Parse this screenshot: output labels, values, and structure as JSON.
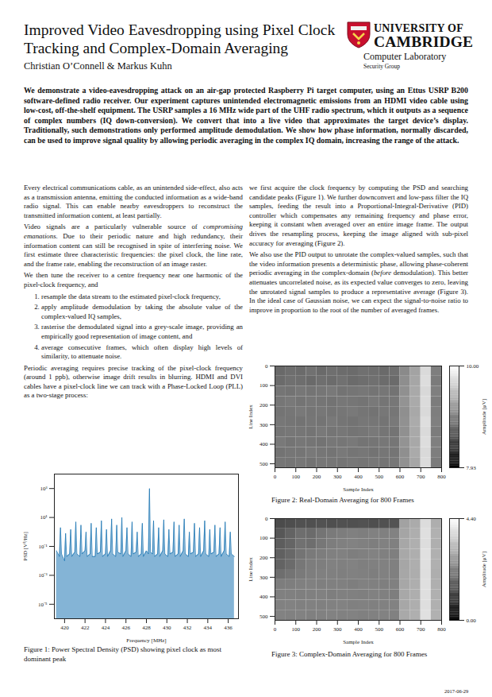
{
  "document": {
    "title_lines": [
      "Improved Video Eavesdropping using Pixel Clock",
      "Tracking and Complex-Domain Averaging"
    ],
    "authors": "Christian O’Connell & Markus Kuhn",
    "institution": {
      "name_lines": [
        "UNIVERSITY OF",
        "CAMBRIDGE"
      ],
      "department": "Computer Laboratory",
      "group": "Security Group"
    },
    "abstract": "We demonstrate a video-eavesdropping attack on an air-gap protected Raspberry Pi target computer, using an Ettus USRP B200 software-defined radio receiver. Our experiment captures unintended electromagnetic emissions from an HDMI video cable using low-cost, off-the-shelf equipment. The USRP samples a 16 MHz wide part of the UHF radio spectrum, which it outputs as a sequence of complex numbers (IQ down-conversion). We convert that into a live video that approximates the target device’s display. Traditionally, such demonstrations only performed amplitude demodulation. We show how phase information, normally discarded, can be used to improve signal quality by allowing periodic averaging in the complex IQ domain, increasing the range of the attack.",
    "left_column": [
      {
        "type": "p",
        "segments": [
          {
            "text": "Every electrical communications cable, as an unintended side-effect, also acts as a transmission antenna, emitting the conducted information as a wide-band radio signal. This can enable nearby eavesdroppers to reconstruct the transmitted information content, at least partially."
          }
        ]
      },
      {
        "type": "p",
        "segments": [
          {
            "text": "Video signals are a particularly vulnerable source of "
          },
          {
            "text": "compromising emanations",
            "italic": true
          },
          {
            "text": ". Due to their periodic nature and high redundancy, their information content can still be recognised in spite of interfering noise. We first estimate three characteristic frequencies: the pixel clock, the line rate, and the frame rate, enabling the reconstruction of an image raster."
          }
        ]
      },
      {
        "type": "p",
        "segments": [
          {
            "text": "We then tune the receiver to a centre frequency near one harmonic of the pixel-clock frequency, and"
          }
        ]
      },
      {
        "type": "ol",
        "items": [
          "resample the data stream to the estimated pixel-clock frequency,",
          "apply amplitude demodulation by taking the absolute value of the complex-valued IQ samples,",
          "rasterise the demodulated signal into a grey-scale image, providing an empirically good representation of image content, and",
          "average consecutive frames, which often display high levels of similarity, to attenuate noise."
        ]
      },
      {
        "type": "p",
        "segments": [
          {
            "text": "Periodic averaging requires precise tracking of the pixel-clock frequency (around 1 ppb), otherwise image drift results in blurring. HDMI and DVI cables have a pixel-clock line we can track with a Phase-Locked Loop (PLL) as a two-stage process:"
          }
        ]
      }
    ],
    "right_column": [
      {
        "type": "p",
        "segments": [
          {
            "text": "we first acquire the clock frequency by computing the PSD and searching candidate peaks (Figure 1). We further downconvert and low-pass filter the IQ samples, feeding the result into a Proportional-Integral-Derivative (PID) controller which compensates any remaining frequency and phase error, keeping it constant when averaged over an entire image frame. The output drives the resampling process, keeping the image aligned with sub-pixel accuracy for averaging (Figure 2)."
          }
        ]
      },
      {
        "type": "p",
        "segments": [
          {
            "text": "We also use the PID output to unrotate the complex-valued samples, such that the video information presents a deterministic phase, allowing phase-coherent periodic averaging in the complex-domain ("
          },
          {
            "text": "before",
            "italic": true
          },
          {
            "text": " demodulation). This better attenuates uncorrelated noise, as its expected value converges to zero, leaving the unrotated signal samples to produce a representative average (Figure 3). In the ideal case of Gaussian noise, we can expect the signal-to-noise ratio to improve in proportion to the root of the number of averaged frames."
          }
        ]
      }
    ],
    "date": "2017-06-29"
  },
  "chart_data": [
    {
      "type": "line",
      "title": "Figure 1: Power Spectral Density (PSD) showing pixel clock as most dominant peak",
      "xlabel": "Frequency [MHz]",
      "ylabel": "PSD [V²/Hz]",
      "log": "y",
      "grid": false,
      "color": "#1f77b4",
      "xlim": [
        419,
        437
      ],
      "xticks": [
        420,
        422,
        424,
        426,
        428,
        430,
        432,
        434,
        436
      ],
      "ylim": [
        1e-06,
        10000
      ],
      "yticks": [
        {
          "value": 1000,
          "label": "10³"
        },
        {
          "value": 10,
          "label": "10¹"
        },
        {
          "value": 0.1,
          "label": "10⁻¹"
        },
        {
          "value": 0.001,
          "label": "10⁻³"
        },
        {
          "value": 1e-05,
          "label": "10⁻⁵"
        }
      ],
      "x": [
        419.2,
        419.5,
        419.6,
        419.7,
        420.0,
        420.1,
        420.2,
        420.5,
        420.6,
        420.7,
        421.0,
        421.1,
        421.2,
        421.5,
        421.6,
        421.7,
        422.0,
        422.1,
        422.2,
        422.5,
        422.6,
        422.7,
        423.0,
        423.1,
        423.2,
        423.5,
        423.6,
        423.7,
        424.0,
        424.1,
        424.2,
        424.5,
        424.6,
        424.7,
        425.0,
        425.1,
        425.2,
        425.5,
        425.6,
        425.7,
        426.0,
        426.1,
        426.2,
        426.5,
        426.6,
        426.7,
        427.0,
        427.1,
        427.2,
        427.5,
        427.6,
        427.7,
        428.0,
        428.2,
        428.3,
        428.4,
        428.6,
        428.7,
        428.8,
        429.1,
        429.2,
        429.3,
        429.6,
        429.7,
        429.8,
        430.1,
        430.2,
        430.3,
        430.6,
        430.7,
        430.8,
        431.1,
        431.2,
        431.3,
        431.6,
        431.7,
        431.8,
        432.1,
        432.2,
        432.3,
        432.6,
        432.7,
        432.8,
        433.1,
        433.2,
        433.3,
        433.6,
        433.7,
        433.8,
        434.1,
        434.2,
        434.3,
        434.6,
        434.7,
        434.8,
        435.1,
        435.2,
        435.3,
        435.6,
        435.7,
        435.8,
        436.1,
        436.2,
        436.3,
        436.6
      ],
      "values": [
        0.05,
        0.02,
        2,
        0.03,
        0.01,
        0.8,
        0.02,
        0.03,
        1.5,
        0.02,
        0.04,
        5,
        0.03,
        0.02,
        3,
        0.03,
        0.05,
        1,
        0.02,
        0.03,
        4,
        0.02,
        0.02,
        2,
        0.03,
        0.04,
        6,
        0.02,
        0.03,
        1.5,
        0.02,
        0.05,
        8,
        0.03,
        0.02,
        3,
        0.04,
        0.03,
        10,
        0.02,
        0.05,
        2,
        0.03,
        0.02,
        5,
        0.03,
        0.04,
        1,
        0.02,
        0.03,
        4,
        0.02,
        0.05,
        0.03,
        1000,
        0.04,
        0.03,
        6,
        0.02,
        0.03,
        2,
        0.02,
        0.05,
        7,
        0.03,
        0.02,
        1.5,
        0.03,
        0.04,
        5,
        0.02,
        0.03,
        3,
        0.02,
        0.05,
        8,
        0.03,
        0.02,
        1,
        0.03,
        0.04,
        4,
        0.02,
        0.03,
        2,
        0.02,
        0.05,
        6,
        0.03,
        0.02,
        1.5,
        0.03,
        0.04,
        3,
        0.02,
        0.03,
        2,
        0.02,
        0.05,
        5,
        0.03,
        0.02,
        1,
        0.03,
        0.02
      ]
    },
    {
      "type": "heatmap",
      "title": "Figure 2: Real-Domain Averaging for 800 Frames",
      "xlabel": "Sample Index",
      "ylabel": "Line Index",
      "xlim": [
        0,
        800
      ],
      "xticks": [
        0,
        100,
        200,
        300,
        400,
        500,
        600,
        700,
        800
      ],
      "ylim": [
        520,
        0
      ],
      "yticks": [
        0,
        100,
        200,
        300,
        400,
        500
      ],
      "cells": {
        "x": [
          0,
          50,
          100,
          150,
          200,
          250,
          300,
          350,
          400,
          450,
          500,
          550,
          600,
          650,
          700,
          750,
          800
        ],
        "y": [
          0,
          52,
          104,
          156,
          208,
          260,
          312,
          364,
          416,
          468,
          520
        ],
        "values": [
          [
            8.78,
            8.82,
            8.8,
            8.85,
            8.79,
            8.83,
            8.81,
            8.8,
            8.84,
            8.82,
            8.79,
            8.83,
            9.05,
            9.25,
            9.7,
            8.95
          ],
          [
            8.8,
            8.84,
            8.82,
            8.79,
            8.83,
            8.81,
            8.85,
            8.8,
            8.82,
            8.84,
            8.81,
            8.8,
            9.08,
            9.28,
            9.72,
            8.93
          ],
          [
            8.88,
            8.86,
            8.9,
            8.87,
            8.89,
            8.91,
            8.86,
            8.88,
            8.9,
            8.87,
            8.89,
            8.86,
            9.1,
            9.3,
            9.68,
            8.96
          ],
          [
            8.89,
            8.91,
            8.87,
            8.9,
            8.88,
            8.86,
            8.9,
            8.89,
            8.87,
            8.91,
            8.88,
            8.9,
            9.12,
            9.31,
            9.71,
            8.94
          ],
          [
            8.87,
            8.89,
            8.91,
            8.88,
            8.9,
            8.87,
            8.89,
            8.91,
            8.88,
            8.86,
            8.9,
            8.89,
            9.09,
            9.29,
            9.69,
            8.95
          ],
          [
            8.9,
            8.88,
            8.86,
            8.89,
            8.87,
            8.91,
            8.88,
            8.86,
            8.9,
            8.89,
            8.87,
            8.91,
            9.11,
            9.32,
            9.73,
            8.97
          ],
          [
            8.88,
            8.9,
            8.89,
            8.87,
            8.91,
            8.88,
            8.9,
            8.87,
            8.89,
            8.91,
            8.88,
            8.87,
            9.1,
            9.3,
            9.7,
            8.94
          ],
          [
            8.91,
            8.87,
            8.9,
            8.88,
            8.86,
            8.9,
            8.89,
            8.91,
            8.87,
            8.88,
            8.9,
            8.89,
            9.12,
            9.29,
            9.72,
            8.96
          ],
          [
            8.86,
            8.89,
            8.88,
            8.91,
            8.89,
            8.87,
            8.91,
            8.88,
            8.9,
            8.86,
            8.89,
            8.88,
            9.09,
            9.31,
            9.69,
            8.95
          ],
          [
            8.89,
            8.88,
            8.9,
            8.86,
            8.9,
            8.89,
            8.87,
            8.9,
            8.88,
            8.9,
            8.87,
            8.9,
            9.11,
            9.28,
            9.71,
            8.93
          ]
        ]
      },
      "colorbar": {
        "label": "Amplitude [μV]",
        "lim": [
          7.93,
          10.0
        ],
        "ticks": [
          {
            "value": 7.93,
            "label": "7.93"
          },
          {
            "value": 10.0,
            "label": "10.00"
          }
        ]
      }
    },
    {
      "type": "heatmap",
      "title": "Figure 3: Complex-Domain Averaging for 800 Frames",
      "xlabel": "Sample Index",
      "ylabel": "Line Index",
      "xlim": [
        0,
        800
      ],
      "xticks": [
        0,
        100,
        200,
        300,
        400,
        500,
        600,
        700,
        800
      ],
      "ylim": [
        520,
        0
      ],
      "yticks": [
        0,
        100,
        200,
        300,
        400,
        500
      ],
      "cells": {
        "x": [
          0,
          50,
          100,
          150,
          200,
          250,
          300,
          350,
          400,
          450,
          500,
          550,
          600,
          650,
          700,
          750,
          800
        ],
        "y": [
          0,
          52,
          104,
          156,
          208,
          260,
          312,
          364,
          416,
          468,
          520
        ],
        "values": [
          [
            1.3,
            1.35,
            1.4,
            1.38,
            1.42,
            1.36,
            1.4,
            1.38,
            1.41,
            1.37,
            1.39,
            1.45,
            2.8,
            2.95,
            3.8,
            3.0
          ],
          [
            1.5,
            1.7,
            1.9,
            1.85,
            2.0,
            2.1,
            2.15,
            2.2,
            2.18,
            2.22,
            2.2,
            2.25,
            2.85,
            3.0,
            3.85,
            3.05
          ],
          [
            1.6,
            1.75,
            1.95,
            1.9,
            2.05,
            2.15,
            2.2,
            2.25,
            2.2,
            2.18,
            2.22,
            2.2,
            2.88,
            3.02,
            3.82,
            3.02
          ],
          [
            1.65,
            1.8,
            2.0,
            2.1,
            2.15,
            2.2,
            2.22,
            2.18,
            2.2,
            2.25,
            2.21,
            2.19,
            2.9,
            3.0,
            3.86,
            3.04
          ],
          [
            1.7,
            1.85,
            2.05,
            2.15,
            2.18,
            2.22,
            2.2,
            2.24,
            2.19,
            2.21,
            2.23,
            2.2,
            2.87,
            3.01,
            3.84,
            3.03
          ],
          [
            1.9,
            2.0,
            2.1,
            2.18,
            2.2,
            2.21,
            2.19,
            2.22,
            2.2,
            2.18,
            2.22,
            2.21,
            2.89,
            2.99,
            3.83,
            3.01
          ],
          [
            2.15,
            2.18,
            2.2,
            2.22,
            2.19,
            2.21,
            2.2,
            2.18,
            2.22,
            2.2,
            2.19,
            2.21,
            2.88,
            3.0,
            3.85,
            3.02
          ],
          [
            2.2,
            2.21,
            2.19,
            2.2,
            2.22,
            2.18,
            2.21,
            2.2,
            2.19,
            2.22,
            2.2,
            2.18,
            2.9,
            3.01,
            3.84,
            3.04
          ],
          [
            2.22,
            2.24,
            2.21,
            2.23,
            2.2,
            2.22,
            2.24,
            2.21,
            2.23,
            2.2,
            2.22,
            2.24,
            2.89,
            3.0,
            3.83,
            3.03
          ],
          [
            2.25,
            2.22,
            2.24,
            2.21,
            2.23,
            2.25,
            2.22,
            2.24,
            2.21,
            2.23,
            2.25,
            2.22,
            2.91,
            3.02,
            3.86,
            3.05
          ]
        ]
      },
      "colorbar": {
        "label": "Amplitude [μV]",
        "lim": [
          0.0,
          4.4
        ],
        "ticks": [
          {
            "value": 0.0,
            "label": "0.00"
          },
          {
            "value": 4.4,
            "label": "4.40"
          }
        ]
      }
    }
  ]
}
